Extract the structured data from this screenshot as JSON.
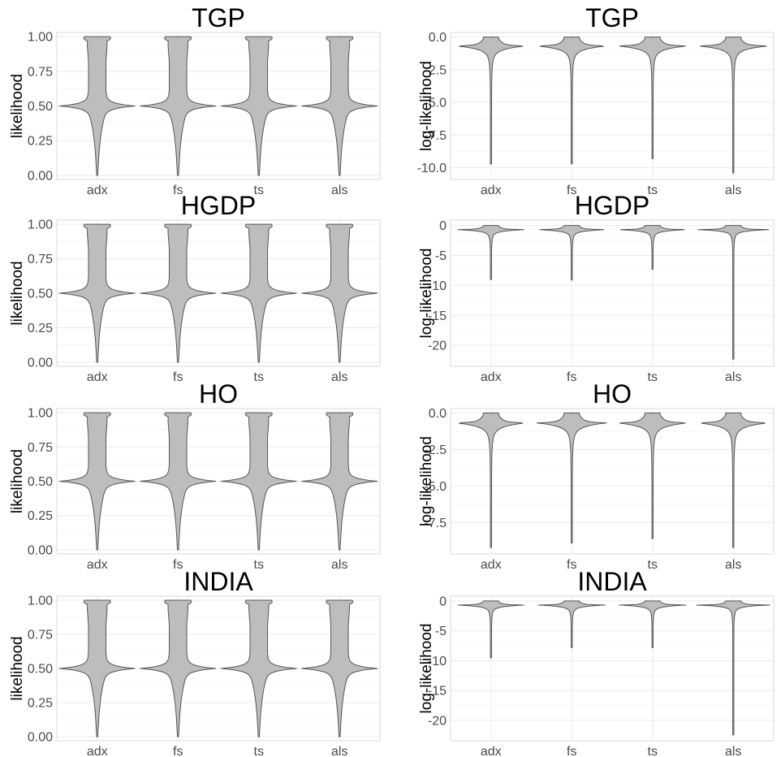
{
  "chart_data": [
    {
      "type": "violin",
      "title": "TGP",
      "ylabel": "likelihood",
      "categories": [
        "adx",
        "fs",
        "ts",
        "als"
      ],
      "ylim": [
        -0.03,
        1.03
      ],
      "yticks": [
        0.0,
        0.25,
        0.5,
        0.75,
        1.0
      ],
      "ytick_labels": [
        "0.00",
        "0.25",
        "0.50",
        "0.75",
        "1.00"
      ],
      "ymin": [
        0.0,
        0.0,
        0.0,
        0.0
      ],
      "ymax": [
        1.0,
        1.0,
        1.0,
        1.0
      ],
      "mode": [
        0.5,
        0.5,
        0.5,
        0.5
      ],
      "grid": true
    },
    {
      "type": "violin",
      "title": "TGP",
      "ylabel": "log-likelihood",
      "categories": [
        "adx",
        "fs",
        "ts",
        "als"
      ],
      "ylim": [
        -10.9,
        0.35
      ],
      "yticks": [
        0.0,
        -2.5,
        -5.0,
        -7.5,
        -10.0
      ],
      "ytick_labels": [
        "0.0",
        "-2.5",
        "-5.0",
        "-7.5",
        "-10.0"
      ],
      "ymin": [
        -9.7,
        -9.7,
        -9.3,
        -10.4
      ],
      "ymax": [
        0.0,
        0.0,
        0.0,
        0.0
      ],
      "mode": [
        -0.69,
        -0.69,
        -0.69,
        -0.69
      ],
      "grid": true
    },
    {
      "type": "violin",
      "title": "HGDP",
      "ylabel": "likelihood",
      "categories": [
        "adx",
        "fs",
        "ts",
        "als"
      ],
      "ylim": [
        -0.03,
        1.03
      ],
      "yticks": [
        0.0,
        0.25,
        0.5,
        0.75,
        1.0
      ],
      "ytick_labels": [
        "0.00",
        "0.25",
        "0.50",
        "0.75",
        "1.00"
      ],
      "ymin": [
        0.0,
        0.0,
        0.0,
        0.0
      ],
      "ymax": [
        1.0,
        1.0,
        1.0,
        1.0
      ],
      "mode": [
        0.5,
        0.5,
        0.5,
        0.5
      ],
      "grid": true
    },
    {
      "type": "violin",
      "title": "HGDP",
      "ylabel": "log-likelihood",
      "categories": [
        "adx",
        "fs",
        "ts",
        "als"
      ],
      "ylim": [
        -23.5,
        0.9
      ],
      "yticks": [
        0,
        -5,
        -10,
        -15,
        -20
      ],
      "ytick_labels": [
        "0",
        "-5",
        "-10",
        "-15",
        "-20"
      ],
      "ymin": [
        -9.0,
        -9.1,
        -7.3,
        -22.3
      ],
      "ymax": [
        0.0,
        0.0,
        0.0,
        0.0
      ],
      "mode": [
        -0.69,
        -0.69,
        -0.69,
        -0.69
      ],
      "grid": true
    },
    {
      "type": "violin",
      "title": "HO",
      "ylabel": "likelihood",
      "categories": [
        "adx",
        "fs",
        "ts",
        "als"
      ],
      "ylim": [
        -0.03,
        1.03
      ],
      "yticks": [
        0.0,
        0.25,
        0.5,
        0.75,
        1.0
      ],
      "ytick_labels": [
        "0.00",
        "0.25",
        "0.50",
        "0.75",
        "1.00"
      ],
      "ymin": [
        0.0,
        0.0,
        0.0,
        0.0
      ],
      "ymax": [
        1.0,
        1.0,
        1.0,
        1.0
      ],
      "mode": [
        0.5,
        0.5,
        0.5,
        0.5
      ],
      "grid": true
    },
    {
      "type": "violin",
      "title": "HO",
      "ylabel": "log-likelihood",
      "categories": [
        "adx",
        "fs",
        "ts",
        "als"
      ],
      "ylim": [
        -9.65,
        0.3
      ],
      "yticks": [
        0.0,
        -2.5,
        -5.0,
        -7.5
      ],
      "ytick_labels": [
        "0.0",
        "-2.5",
        "-5.0",
        "-7.5"
      ],
      "ymin": [
        -9.2,
        -8.9,
        -8.6,
        -9.2
      ],
      "ymax": [
        0.0,
        0.0,
        0.0,
        0.0
      ],
      "mode": [
        -0.69,
        -0.69,
        -0.69,
        -0.69
      ],
      "grid": true
    },
    {
      "type": "violin",
      "title": "INDIA",
      "ylabel": "likelihood",
      "categories": [
        "adx",
        "fs",
        "ts",
        "als"
      ],
      "ylim": [
        -0.03,
        1.03
      ],
      "yticks": [
        0.0,
        0.25,
        0.5,
        0.75,
        1.0
      ],
      "ytick_labels": [
        "0.00",
        "0.25",
        "0.50",
        "0.75",
        "1.00"
      ],
      "ymin": [
        0.0,
        0.0,
        0.0,
        0.0
      ],
      "ymax": [
        1.0,
        1.0,
        1.0,
        1.0
      ],
      "mode": [
        0.5,
        0.5,
        0.5,
        0.5
      ],
      "grid": true
    },
    {
      "type": "violin",
      "title": "INDIA",
      "ylabel": "log-likelihood",
      "categories": [
        "adx",
        "fs",
        "ts",
        "als"
      ],
      "ylim": [
        -23.4,
        0.8
      ],
      "yticks": [
        0,
        -5,
        -10,
        -15,
        -20
      ],
      "ytick_labels": [
        "0",
        "-5",
        "-10",
        "-15",
        "-20"
      ],
      "ymin": [
        -9.5,
        -7.8,
        -7.8,
        -22.4
      ],
      "ymax": [
        0.0,
        0.0,
        0.0,
        0.0
      ],
      "mode": [
        -0.69,
        -0.69,
        -0.69,
        -0.69
      ],
      "grid": true
    }
  ],
  "colors": {
    "violin_fill": "#bdbdbd",
    "violin_outline": "#555555",
    "grid": "#ebebeb",
    "panel_border": "#d9d9d9"
  }
}
